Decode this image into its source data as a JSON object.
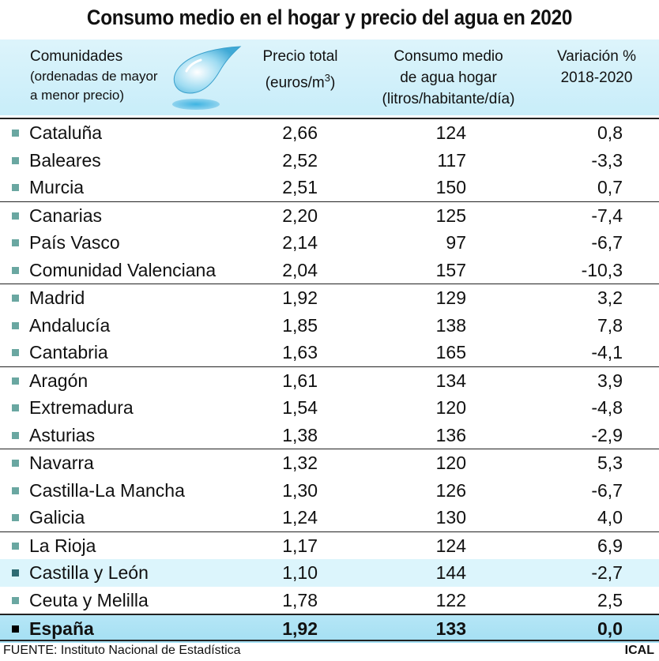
{
  "title": "Consumo medio en el hogar y precio del agua en 2020",
  "columns": {
    "comunidades": "Comunidades",
    "comunidades_sub1": "(ordenadas de mayor",
    "comunidades_sub2": "a menor precio)",
    "precio_1": "Precio total",
    "precio_2": "(euros/m",
    "precio_sup": "3",
    "precio_close": ")",
    "consumo_1": "Consumo medio",
    "consumo_2": "de agua hogar",
    "consumo_3": "(litros/habitante/día)",
    "variacion_1": "Variación %",
    "variacion_2": "2018-2020"
  },
  "colors": {
    "header_bg": "#c8edf9",
    "bullet": "#6aa7a1",
    "highlight_row": "#dcf5fc",
    "total_row": "#a4dff3"
  },
  "chart_data": {
    "type": "table",
    "title": "Consumo medio en el hogar y precio del agua en 2020",
    "columns": [
      "Comunidades",
      "Precio total (euros/m3)",
      "Consumo medio de agua hogar (litros/habitante/día)",
      "Variación % 2018-2020"
    ],
    "rows": [
      {
        "name": "Cataluña",
        "price": "2,66",
        "cons": "124",
        "var": "0,8"
      },
      {
        "name": "Baleares",
        "price": "2,52",
        "cons": "117",
        "var": "-3,3"
      },
      {
        "name": "Murcia",
        "price": "2,51",
        "cons": "150",
        "var": "0,7"
      },
      {
        "name": "Canarias",
        "price": "2,20",
        "cons": "125",
        "var": "-7,4"
      },
      {
        "name": "País Vasco",
        "price": "2,14",
        "cons": "97",
        "var": "-6,7"
      },
      {
        "name": "Comunidad Valenciana",
        "price": "2,04",
        "cons": "157",
        "var": "-10,3"
      },
      {
        "name": "Madrid",
        "price": "1,92",
        "cons": "129",
        "var": "3,2"
      },
      {
        "name": "Andalucía",
        "price": "1,85",
        "cons": "138",
        "var": "7,8"
      },
      {
        "name": "Cantabria",
        "price": "1,63",
        "cons": "165",
        "var": "-4,1"
      },
      {
        "name": "Aragón",
        "price": "1,61",
        "cons": "134",
        "var": "3,9"
      },
      {
        "name": "Extremadura",
        "price": "1,54",
        "cons": "120",
        "var": "-4,8"
      },
      {
        "name": "Asturias",
        "price": "1,38",
        "cons": "136",
        "var": "-2,9"
      },
      {
        "name": "Navarra",
        "price": "1,32",
        "cons": "120",
        "var": "5,3"
      },
      {
        "name": "Castilla-La Mancha",
        "price": "1,30",
        "cons": "126",
        "var": "-6,7"
      },
      {
        "name": "Galicia",
        "price": "1,24",
        "cons": "130",
        "var": "4,0"
      },
      {
        "name": "La Rioja",
        "price": "1,17",
        "cons": "124",
        "var": "6,9"
      },
      {
        "name": "Castilla y León",
        "price": "1,10",
        "cons": "144",
        "var": "-2,7",
        "highlight": true
      },
      {
        "name": "Ceuta y Melilla",
        "price": "1,78",
        "cons": "122",
        "var": "2,5"
      },
      {
        "name": "España",
        "price": "1,92",
        "cons": "133",
        "var": "0,0",
        "total": true
      }
    ],
    "group_size": 3
  },
  "footer": {
    "source": "FUENTE: Instituto Nacional de Estadística",
    "brand": "ICAL"
  },
  "icons": {
    "water_drop": "water-drop-icon"
  }
}
